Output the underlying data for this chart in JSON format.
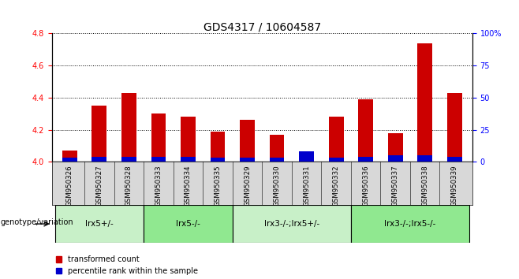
{
  "title": "GDS4317 / 10604587",
  "samples": [
    "GSM950326",
    "GSM950327",
    "GSM950328",
    "GSM950333",
    "GSM950334",
    "GSM950335",
    "GSM950329",
    "GSM950330",
    "GSM950331",
    "GSM950332",
    "GSM950336",
    "GSM950337",
    "GSM950338",
    "GSM950339"
  ],
  "red_values": [
    4.07,
    4.35,
    4.43,
    4.3,
    4.28,
    4.19,
    4.26,
    4.17,
    4.0,
    4.28,
    4.39,
    4.18,
    4.74,
    4.43
  ],
  "blue_values": [
    3,
    4,
    4,
    4,
    4,
    3,
    3,
    3,
    8,
    3,
    4,
    5,
    5,
    4
  ],
  "ylim_left": [
    4.0,
    4.8
  ],
  "ylim_right": [
    0,
    100
  ],
  "yticks_left": [
    4.0,
    4.2,
    4.4,
    4.6,
    4.8
  ],
  "yticks_right": [
    0,
    25,
    50,
    75,
    100
  ],
  "groups": [
    {
      "label": "lrx5+/-",
      "start": 0,
      "end": 3,
      "color": "#c8f0c8"
    },
    {
      "label": "lrx5-/-",
      "start": 3,
      "end": 6,
      "color": "#90e890"
    },
    {
      "label": "lrx3-/-;lrx5+/-",
      "start": 6,
      "end": 10,
      "color": "#c8f0c8"
    },
    {
      "label": "lrx3-/-;lrx5-/-",
      "start": 10,
      "end": 14,
      "color": "#90e890"
    }
  ],
  "genotype_label": "genotype/variation",
  "legend_red": "transformed count",
  "legend_blue": "percentile rank within the sample",
  "bar_width": 0.5,
  "red_color": "#cc0000",
  "blue_color": "#0000cc",
  "title_fontsize": 10,
  "tick_fontsize": 7,
  "base": 4.0
}
